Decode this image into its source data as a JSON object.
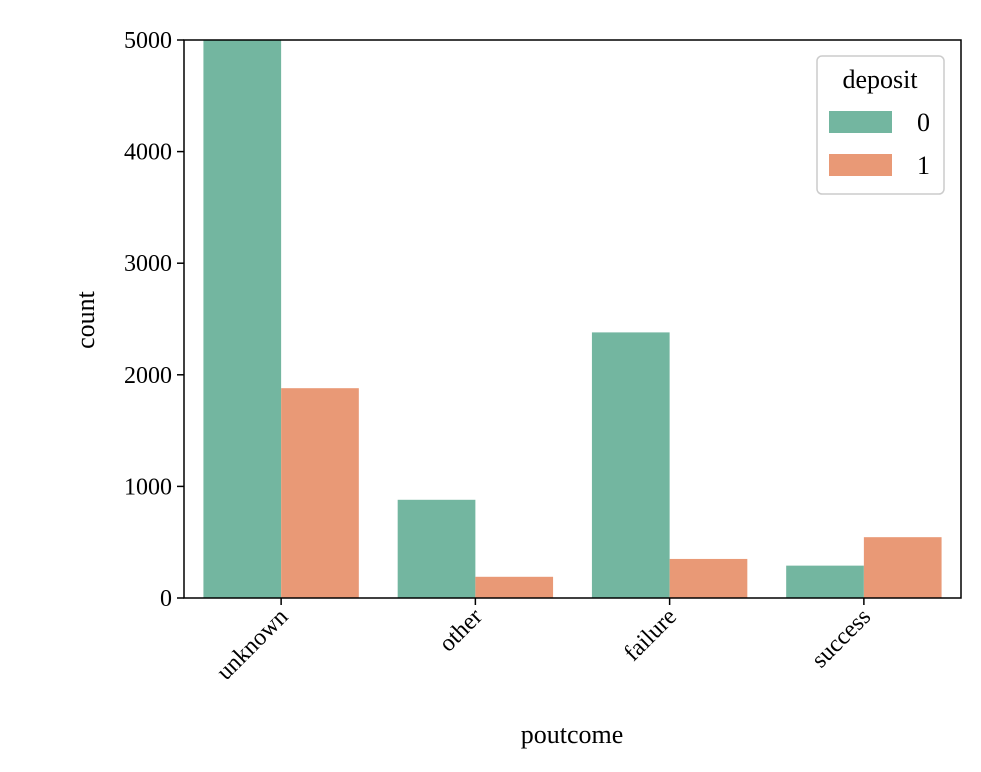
{
  "chart_data": {
    "type": "bar",
    "title": "",
    "xlabel": "poutcome",
    "ylabel": "count",
    "categories": [
      "unknown",
      "other",
      "failure",
      "success"
    ],
    "series": [
      {
        "name": "0",
        "color": "#73b6a0",
        "values": [
          5500,
          880,
          2380,
          290
        ]
      },
      {
        "name": "1",
        "color": "#e99976",
        "values": [
          1880,
          190,
          350,
          545
        ]
      }
    ],
    "ylim": [
      0,
      5000
    ],
    "yticks": [
      0,
      1000,
      2000,
      3000,
      4000,
      5000
    ],
    "grid": false,
    "legend": {
      "title": "deposit",
      "position": "top-right"
    }
  }
}
